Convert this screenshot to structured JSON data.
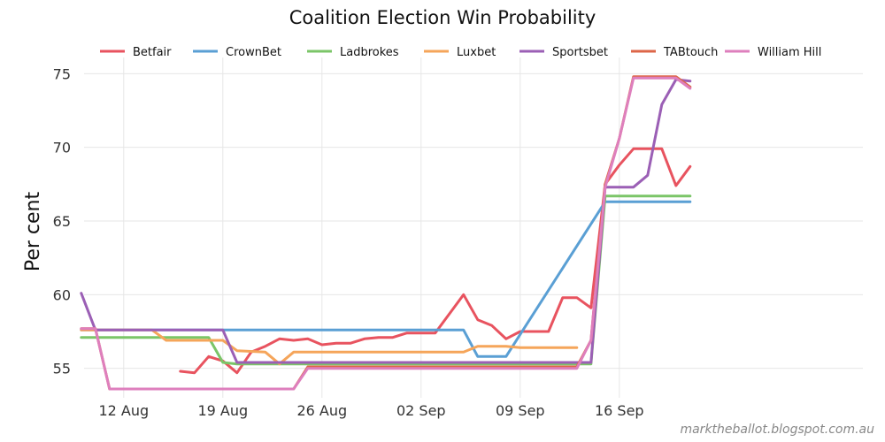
{
  "chart_data": {
    "type": "line",
    "title": "Coalition Election Win Probability",
    "xlabel": "",
    "ylabel": "Per cent",
    "ylim": [
      53,
      75.8
    ],
    "yticks": [
      55,
      60,
      65,
      70,
      75
    ],
    "xlim": [
      -2.8,
      52.2
    ],
    "xticks": [
      {
        "day": 0,
        "label": "12 Aug"
      },
      {
        "day": 7,
        "label": "19 Aug"
      },
      {
        "day": 14,
        "label": "26 Aug"
      },
      {
        "day": 21,
        "label": "02 Sep"
      },
      {
        "day": 28,
        "label": "09 Sep"
      },
      {
        "day": 35,
        "label": "16 Sep"
      }
    ],
    "x_unit": "days since 12 Aug",
    "legend_position": "top",
    "grid": true,
    "series": [
      {
        "name": "Betfair",
        "color": "#e8535f",
        "points": [
          [
            4,
            54.8
          ],
          [
            5,
            54.7
          ],
          [
            6,
            55.8
          ],
          [
            7,
            55.5
          ],
          [
            8,
            54.7
          ],
          [
            9,
            56.1
          ],
          [
            10,
            56.5
          ],
          [
            11,
            57.0
          ],
          [
            12,
            56.9
          ],
          [
            13,
            57.0
          ],
          [
            14,
            56.6
          ],
          [
            15,
            56.7
          ],
          [
            16,
            56.7
          ],
          [
            17,
            57.0
          ],
          [
            18,
            57.1
          ],
          [
            19,
            57.1
          ],
          [
            20,
            57.4
          ],
          [
            21,
            57.4
          ],
          [
            22,
            57.4
          ],
          [
            23,
            58.7
          ],
          [
            24,
            60.0
          ],
          [
            25,
            58.3
          ],
          [
            26,
            57.9
          ],
          [
            27,
            57.0
          ],
          [
            28,
            57.5
          ],
          [
            29,
            57.5
          ],
          [
            30,
            57.5
          ],
          [
            31,
            59.8
          ],
          [
            32,
            59.8
          ],
          [
            33,
            59.1
          ],
          [
            34,
            67.5
          ],
          [
            35,
            68.8
          ],
          [
            36,
            69.9
          ],
          [
            37,
            69.9
          ],
          [
            38,
            69.9
          ],
          [
            39,
            67.4
          ],
          [
            40,
            68.7
          ]
        ]
      },
      {
        "name": "CrownBet",
        "color": "#5a9fd4",
        "points": [
          [
            -3,
            57.6
          ],
          [
            -1,
            57.6
          ],
          [
            7,
            57.6
          ],
          [
            8,
            57.6
          ],
          [
            24,
            57.6
          ],
          [
            25,
            55.8
          ],
          [
            27,
            55.8
          ],
          [
            34,
            66.3
          ],
          [
            40,
            66.3
          ]
        ]
      },
      {
        "name": "Ladbrokes",
        "color": "#7bc568",
        "points": [
          [
            -3,
            57.1
          ],
          [
            6,
            57.1
          ],
          [
            7,
            55.4
          ],
          [
            8,
            55.3
          ],
          [
            33,
            55.3
          ],
          [
            34,
            66.7
          ],
          [
            40,
            66.7
          ]
        ]
      },
      {
        "name": "Luxbet",
        "color": "#f5a55a",
        "points": [
          [
            -3,
            57.6
          ],
          [
            2,
            57.6
          ],
          [
            3,
            56.9
          ],
          [
            7,
            56.9
          ],
          [
            8,
            56.2
          ],
          [
            10,
            56.1
          ],
          [
            11,
            55.3
          ],
          [
            12,
            56.1
          ],
          [
            24,
            56.1
          ],
          [
            25,
            56.5
          ],
          [
            27,
            56.5
          ],
          [
            28,
            56.4
          ],
          [
            32,
            56.4
          ]
        ]
      },
      {
        "name": "Sportsbet",
        "color": "#9b5fb5",
        "points": [
          [
            -3,
            60.1
          ],
          [
            -2,
            57.6
          ],
          [
            7,
            57.6
          ],
          [
            8,
            55.4
          ],
          [
            33,
            55.4
          ],
          [
            34,
            67.3
          ],
          [
            36,
            67.3
          ],
          [
            37,
            68.1
          ],
          [
            38,
            72.9
          ],
          [
            39,
            74.6
          ],
          [
            40,
            74.5
          ]
        ]
      },
      {
        "name": "TABtouch",
        "color": "#dd6648",
        "points": [
          [
            -3,
            57.7
          ],
          [
            -2,
            57.7
          ],
          [
            -1,
            53.6
          ],
          [
            12,
            53.6
          ],
          [
            13,
            55.1
          ],
          [
            32,
            55.1
          ],
          [
            33,
            56.9
          ],
          [
            34,
            67.5
          ],
          [
            35,
            70.6
          ],
          [
            36,
            74.8
          ],
          [
            39,
            74.8
          ],
          [
            40,
            74.1
          ]
        ]
      },
      {
        "name": "William Hill",
        "color": "#de7fbd",
        "points": [
          [
            -3,
            57.7
          ],
          [
            -2,
            57.7
          ],
          [
            -1,
            53.6
          ],
          [
            12,
            53.6
          ],
          [
            13,
            55.0
          ],
          [
            32,
            55.0
          ],
          [
            33,
            56.9
          ],
          [
            34,
            67.3
          ],
          [
            35,
            70.6
          ],
          [
            36,
            74.7
          ],
          [
            39,
            74.7
          ],
          [
            40,
            74.0
          ]
        ]
      }
    ]
  },
  "watermark": "marktheballot.blogspot.com.au"
}
